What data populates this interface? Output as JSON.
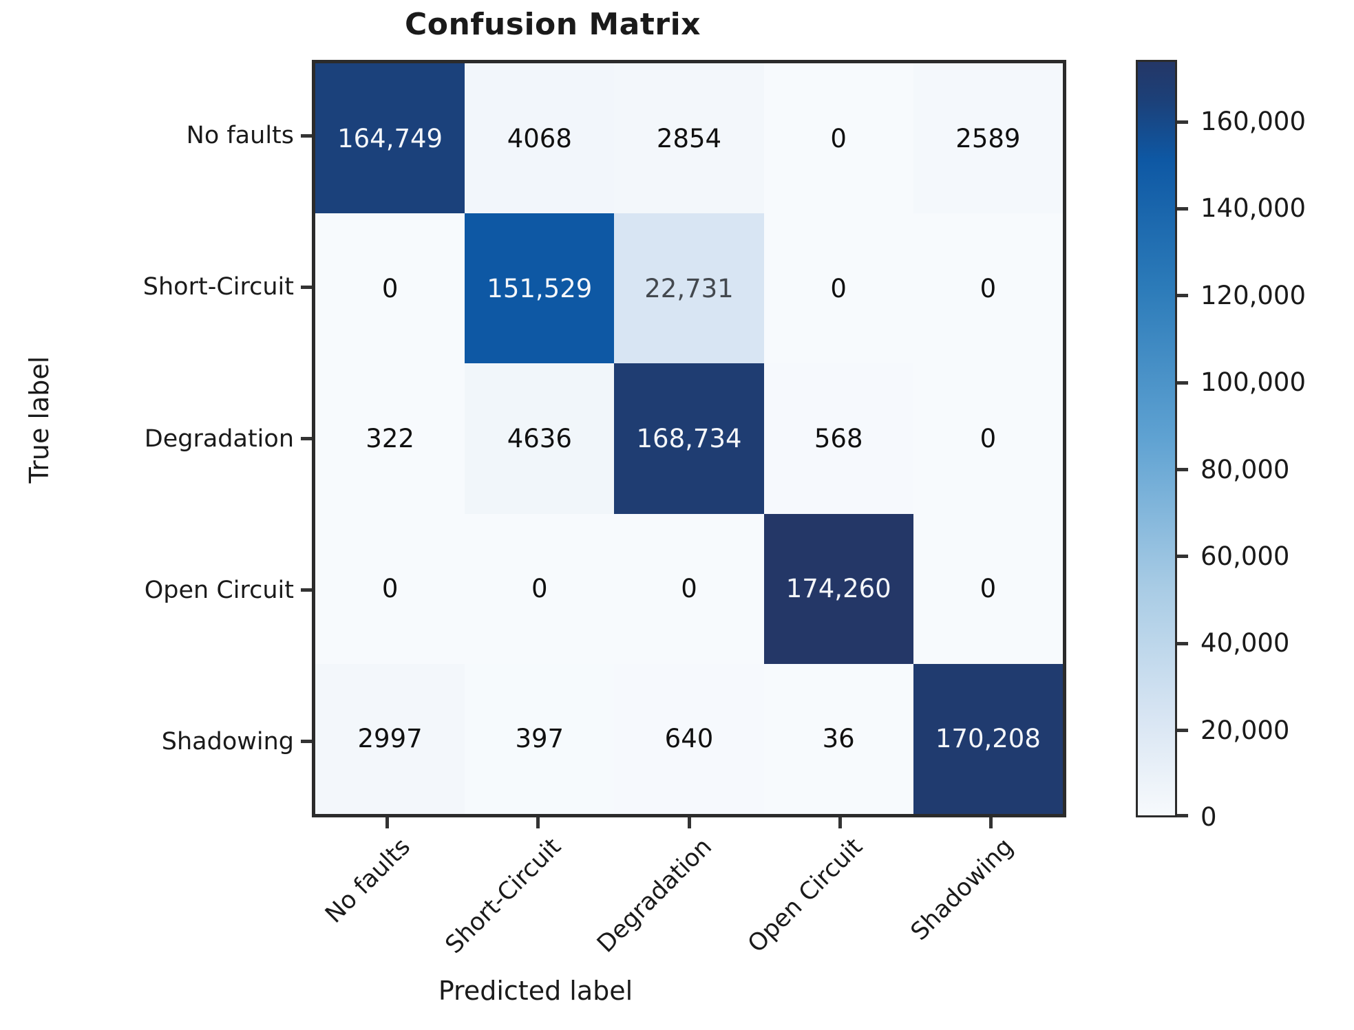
{
  "chart_data": {
    "type": "heatmap",
    "title": "Confusion Matrix",
    "xlabel": "Predicted label",
    "ylabel": "True label",
    "x_tick_labels": [
      "No faults",
      "Short-Circuit",
      "Degradation",
      "Open Circuit",
      "Shadowing"
    ],
    "y_tick_labels": [
      "No faults",
      "Short-Circuit",
      "Degradation",
      "Open Circuit",
      "Shadowing"
    ],
    "matrix": [
      [
        164749,
        4068,
        2854,
        0,
        2589
      ],
      [
        0,
        151529,
        22731,
        0,
        0
      ],
      [
        322,
        4636,
        168734,
        568,
        0
      ],
      [
        0,
        0,
        0,
        174260,
        0
      ],
      [
        2997,
        397,
        640,
        36,
        170208
      ]
    ],
    "cell_display": [
      [
        "164,749",
        "4068",
        "2854",
        "0",
        "2589"
      ],
      [
        "0",
        "151,529",
        "22,731",
        "0",
        "0"
      ],
      [
        "322",
        "4636",
        "168,734",
        "568",
        "0"
      ],
      [
        "0",
        "0",
        "0",
        "174,260",
        "0"
      ],
      [
        "2997",
        "397",
        "640",
        "36",
        "170,208"
      ]
    ],
    "vmin": 0,
    "vmax": 174260,
    "grid": false,
    "legend": false,
    "colorbar": {
      "position": "right",
      "tick_values": [
        0,
        20000,
        40000,
        60000,
        80000,
        100000,
        120000,
        140000,
        160000
      ],
      "tick_labels": [
        "0",
        "20,000",
        "40,000",
        "60,000",
        "80,000",
        "100,000",
        "120,000",
        "140,000",
        "160,000"
      ]
    },
    "colormap": {
      "name": "blues",
      "stops": [
        {
          "t": 0.0,
          "color": "#f7fafd"
        },
        {
          "t": 0.03,
          "color": "#f0f5fa"
        },
        {
          "t": 0.13,
          "color": "#d8e5f3"
        },
        {
          "t": 0.3,
          "color": "#a9cce5"
        },
        {
          "t": 0.5,
          "color": "#5fa2d2"
        },
        {
          "t": 0.7,
          "color": "#2c7bb9"
        },
        {
          "t": 0.87,
          "color": "#0e58a4"
        },
        {
          "t": 0.95,
          "color": "#1c4078"
        },
        {
          "t": 1.0,
          "color": "#243767"
        }
      ]
    },
    "style_colors": {
      "axis_border": "#2b2b2b",
      "tick_mark": "#333333",
      "text_dark": "#101010",
      "text_mid": "#43484e",
      "text_light": "#f5f7fa"
    }
  }
}
